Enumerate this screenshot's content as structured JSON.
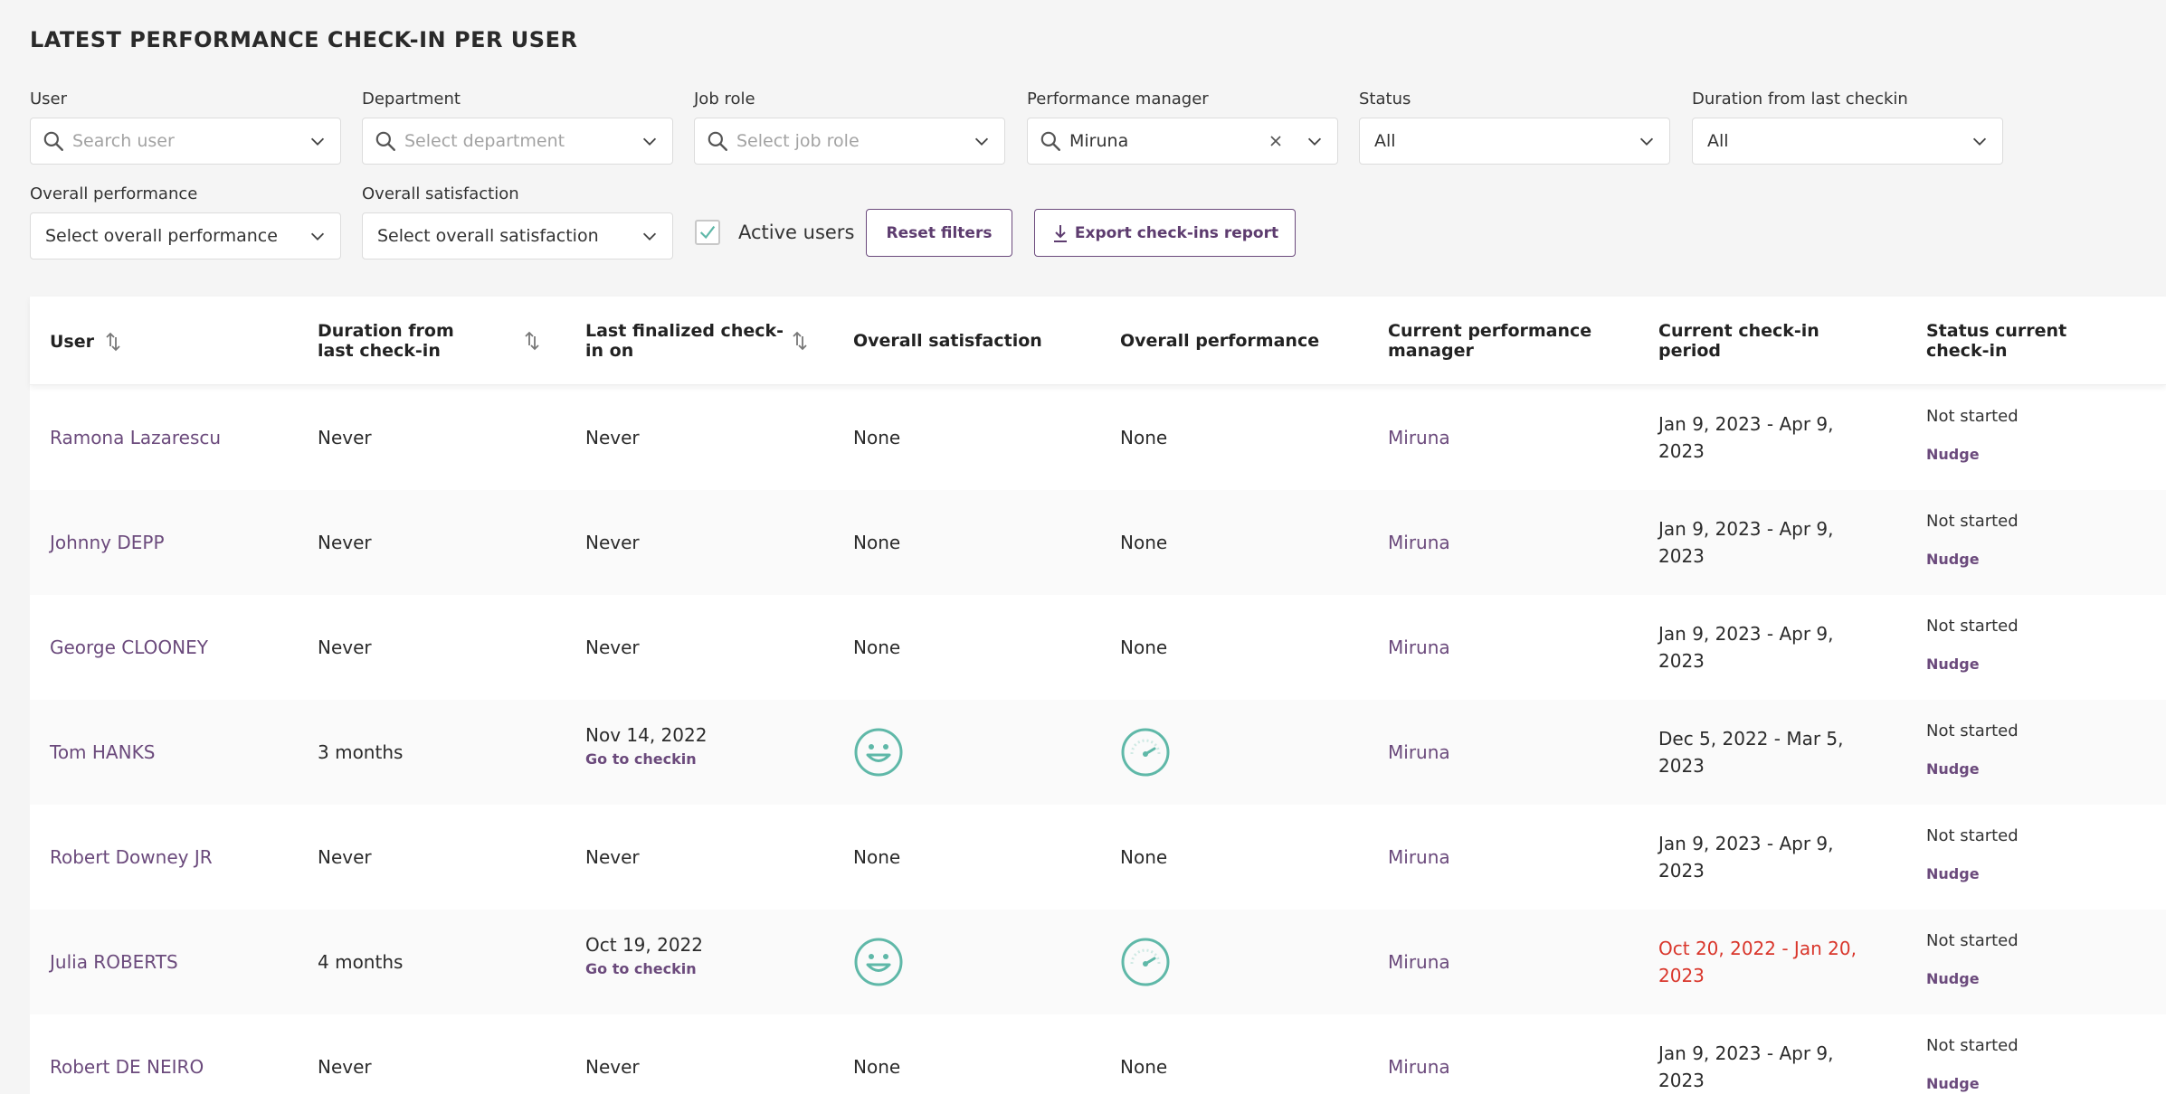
{
  "page": {
    "title": "LATEST PERFORMANCE CHECK-IN PER USER"
  },
  "filters": {
    "user": {
      "label": "User",
      "placeholder": "Search user"
    },
    "department": {
      "label": "Department",
      "placeholder": "Select department"
    },
    "job_role": {
      "label": "Job role",
      "placeholder": "Select job role"
    },
    "performance_manager": {
      "label": "Performance manager",
      "value": "Miruna"
    },
    "status": {
      "label": "Status",
      "value": "All"
    },
    "duration": {
      "label": "Duration from last checkin",
      "value": "All"
    },
    "overall_performance": {
      "label": "Overall performance",
      "value": "Select overall performance"
    },
    "overall_satisfaction": {
      "label": "Overall satisfaction",
      "value": "Select overall satisfaction"
    },
    "active_users": {
      "label": "Active users",
      "checked": true
    }
  },
  "actions": {
    "reset_label": "Reset filters",
    "export_label": "Export check-ins report"
  },
  "colors": {
    "accent": "#6b4a7c",
    "teal": "#5fb8a8",
    "overdue": "#d9362b"
  },
  "table": {
    "columns": [
      "User",
      "Duration from last check-in",
      "Last finalized check-in on",
      "Overall satisfaction",
      "Overall performance",
      "Current performance manager",
      "Current check-in period",
      "Status current check-in"
    ],
    "go_to_checkin_label": "Go to checkin",
    "nudge_label": "Nudge",
    "rows": [
      {
        "user": "Ramona Lazarescu",
        "duration": "Never",
        "last": "Never",
        "satisfaction": "None",
        "performance": "None",
        "manager": "Miruna",
        "period": "Jan 9, 2023 - Apr 9, 2023",
        "status": "Not started"
      },
      {
        "user": "Johnny DEPP",
        "duration": "Never",
        "last": "Never",
        "satisfaction": "None",
        "performance": "None",
        "manager": "Miruna",
        "period": "Jan 9, 2023 - Apr 9, 2023",
        "status": "Not started"
      },
      {
        "user": "George CLOONEY",
        "duration": "Never",
        "last": "Never",
        "satisfaction": "None",
        "performance": "None",
        "manager": "Miruna",
        "period": "Jan 9, 2023 - Apr 9, 2023",
        "status": "Not started"
      },
      {
        "user": "Tom HANKS",
        "duration": "3 months",
        "last": "Nov 14, 2022",
        "satisfaction_icon": "smiley-face-icon",
        "performance_icon": "gauge-icon",
        "manager": "Miruna",
        "period": "Dec 5, 2022 - Mar 5, 2023",
        "status": "Not started"
      },
      {
        "user": "Robert Downey JR",
        "duration": "Never",
        "last": "Never",
        "satisfaction": "None",
        "performance": "None",
        "manager": "Miruna",
        "period": "Jan 9, 2023 - Apr 9, 2023",
        "status": "Not started"
      },
      {
        "user": "Julia ROBERTS",
        "duration": "4 months",
        "last": "Oct 19, 2022",
        "satisfaction_icon": "smiley-face-icon",
        "performance_icon": "gauge-icon",
        "manager": "Miruna",
        "period": "Oct 20, 2022 - Jan 20, 2023",
        "period_overdue": true,
        "status": "Not started"
      },
      {
        "user": "Robert DE NEIRO",
        "duration": "Never",
        "last": "Never",
        "satisfaction": "None",
        "performance": "None",
        "manager": "Miruna",
        "period": "Jan 9, 2023 - Apr 9, 2023",
        "status": "Not started"
      }
    ]
  }
}
